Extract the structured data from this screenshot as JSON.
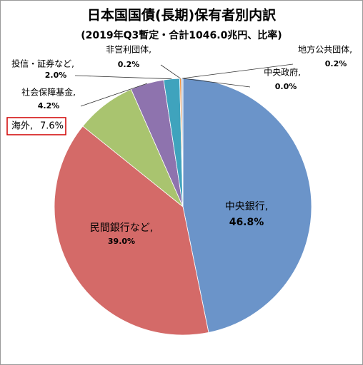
{
  "chart_data": {
    "type": "pie",
    "title": "日本国国債(長期)保有者別内訳",
    "subtitle": "(2019年Q3暫定・合計1046.0兆円、比率)",
    "categories": [
      "中央銀行,",
      "民間銀行など,",
      "海外,",
      "社会保障基金,",
      "投信・証券など,",
      "非営利団体,",
      "地方公共団体,",
      "中央政府,"
    ],
    "values": [
      46.8,
      39.0,
      7.6,
      4.2,
      2.0,
      0.2,
      0.2,
      0.0
    ],
    "value_labels": [
      "46.8%",
      "39.0%",
      "7.6%",
      "4.2%",
      "2.0%",
      "0.2%",
      "0.2%",
      "0.0%"
    ],
    "colors": [
      "#6b94c9",
      "#d46a68",
      "#a9c46f",
      "#8e73ae",
      "#3fa3bd",
      "#f3923c",
      "#9bb9dd",
      "#c8c8c8"
    ]
  }
}
